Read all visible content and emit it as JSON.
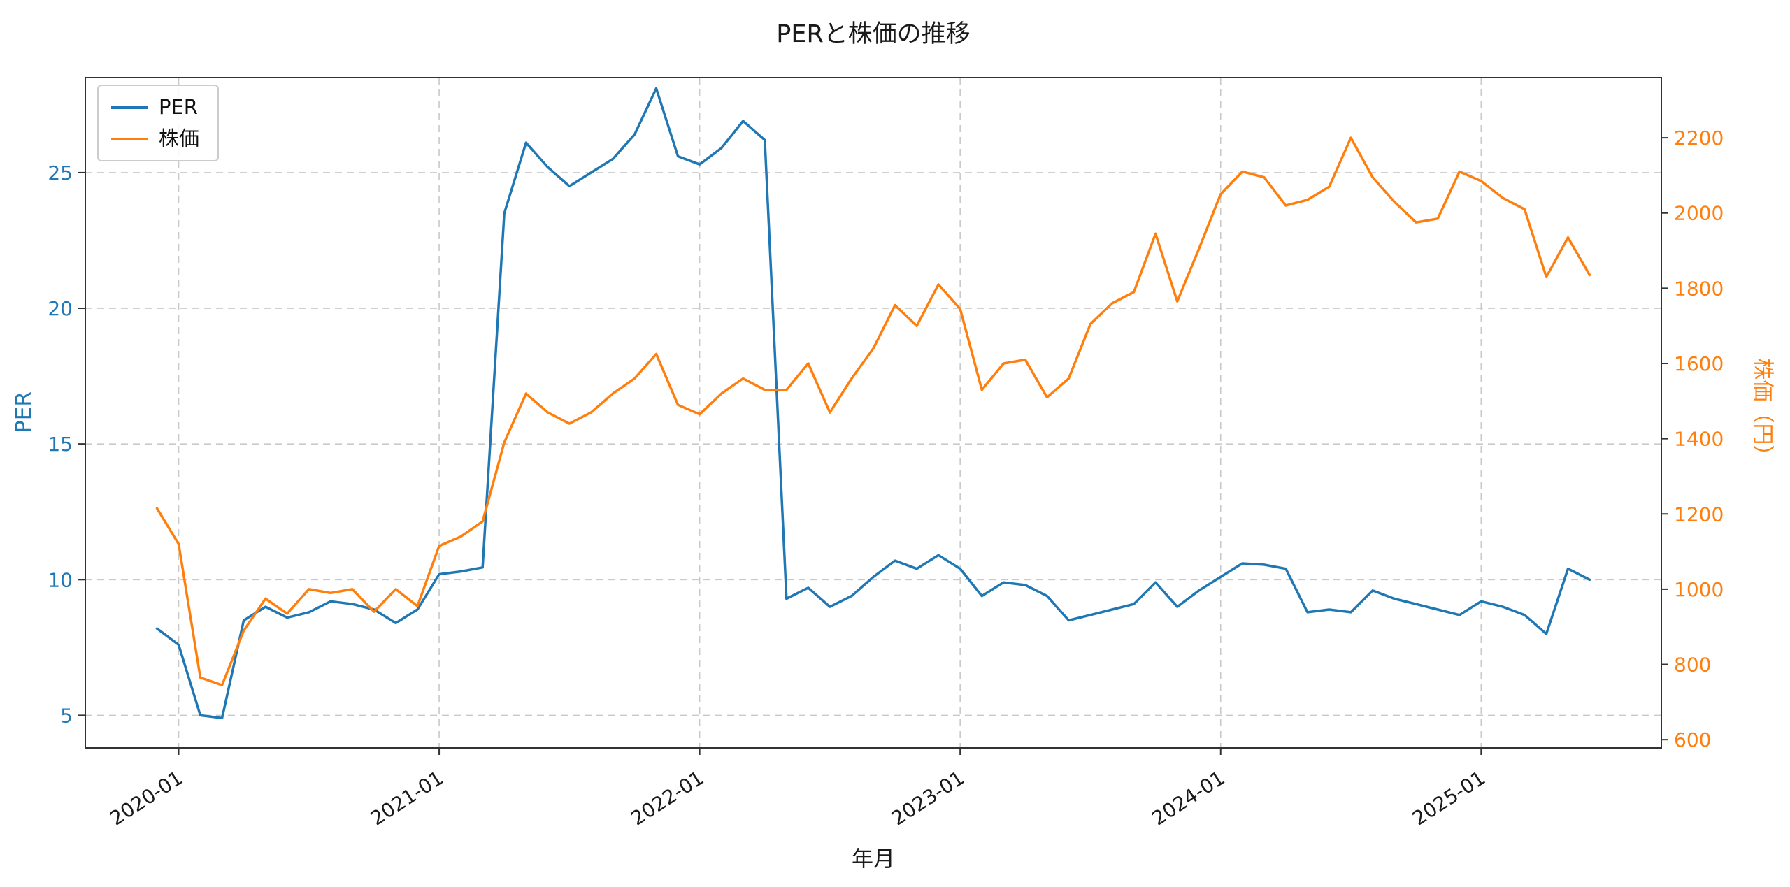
{
  "figure": {
    "title": "PERと株価の推移",
    "xlabel": "年月",
    "ylabel_left": "PER",
    "ylabel_right": "株価（円）",
    "legend": {
      "per": "PER",
      "price": "株価"
    },
    "colors": {
      "per": "#1f77b4",
      "price": "#ff7f0e",
      "grid": "#c9c9c9",
      "spine": "#333333",
      "text": "#1a1a1a"
    }
  },
  "chart_data": {
    "type": "line",
    "title": "PERと株価の推移",
    "xlabel": "年月",
    "grid": true,
    "legend_position": "upper-left",
    "xlim": [
      -3.3,
      69.3
    ],
    "x": [
      "2019-12",
      "2020-01",
      "2020-02",
      "2020-03",
      "2020-04",
      "2020-05",
      "2020-06",
      "2020-07",
      "2020-08",
      "2020-09",
      "2020-10",
      "2020-11",
      "2020-12",
      "2021-01",
      "2021-02",
      "2021-03",
      "2021-04",
      "2021-05",
      "2021-06",
      "2021-07",
      "2021-08",
      "2021-09",
      "2021-10",
      "2021-11",
      "2021-12",
      "2022-01",
      "2022-02",
      "2022-03",
      "2022-04",
      "2022-05",
      "2022-06",
      "2022-07",
      "2022-08",
      "2022-09",
      "2022-10",
      "2022-11",
      "2022-12",
      "2023-01",
      "2023-02",
      "2023-03",
      "2023-04",
      "2023-05",
      "2023-06",
      "2023-07",
      "2023-08",
      "2023-09",
      "2023-10",
      "2023-11",
      "2023-12",
      "2024-01",
      "2024-02",
      "2024-03",
      "2024-04",
      "2024-05",
      "2024-06",
      "2024-07",
      "2024-08",
      "2024-09",
      "2024-10",
      "2024-11",
      "2024-12",
      "2025-01",
      "2025-02",
      "2025-03",
      "2025-04",
      "2025-05",
      "2025-06"
    ],
    "series": [
      {
        "name": "PER",
        "data_name": "per-line",
        "axis": "left",
        "color": "#1f77b4",
        "values": [
          8.2,
          7.6,
          5.0,
          4.9,
          8.5,
          9.0,
          8.6,
          8.8,
          9.2,
          9.1,
          8.9,
          8.4,
          8.9,
          10.2,
          10.3,
          10.45,
          23.5,
          26.1,
          25.2,
          24.5,
          25.0,
          25.5,
          26.4,
          28.1,
          25.6,
          25.3,
          25.9,
          26.9,
          26.2,
          9.3,
          9.7,
          9.0,
          9.4,
          10.1,
          10.7,
          10.4,
          10.9,
          10.4,
          9.4,
          9.9,
          9.8,
          9.4,
          8.5,
          8.7,
          8.9,
          9.1,
          9.9,
          9.0,
          9.6,
          10.1,
          10.6,
          10.55,
          10.4,
          8.8,
          8.9,
          8.8,
          9.6,
          9.3,
          9.1,
          8.9,
          8.7,
          9.2,
          9.0,
          8.7,
          8.0,
          10.4,
          10.0
        ]
      },
      {
        "name": "株価",
        "data_name": "price-line",
        "axis": "right",
        "color": "#ff7f0e",
        "values": [
          1215,
          1120,
          765,
          745,
          890,
          975,
          935,
          1000,
          990,
          1000,
          940,
          1000,
          955,
          1115,
          1140,
          1180,
          1390,
          1520,
          1470,
          1440,
          1470,
          1520,
          1560,
          1625,
          1490,
          1465,
          1520,
          1560,
          1530,
          1530,
          1600,
          1470,
          1560,
          1640,
          1755,
          1700,
          1810,
          1745,
          1530,
          1600,
          1610,
          1510,
          1560,
          1705,
          1760,
          1790,
          1945,
          1765,
          1905,
          2050,
          2110,
          2095,
          2020,
          2035,
          2070,
          2200,
          2095,
          2030,
          1975,
          1985,
          2110,
          2085,
          2040,
          2010,
          1830,
          1935,
          1835
        ]
      }
    ],
    "x_ticks": [
      {
        "label": "2020-01",
        "index": 1
      },
      {
        "label": "2021-01",
        "index": 13
      },
      {
        "label": "2022-01",
        "index": 25
      },
      {
        "label": "2023-01",
        "index": 37
      },
      {
        "label": "2024-01",
        "index": 49
      },
      {
        "label": "2025-01",
        "index": 61
      }
    ],
    "y_left": {
      "label": "PER",
      "ticks": [
        5,
        10,
        15,
        20,
        25
      ],
      "lim": [
        3.8,
        28.5
      ]
    },
    "y_right": {
      "label": "株価（円）",
      "ticks": [
        600,
        800,
        1000,
        1200,
        1400,
        1600,
        1800,
        2000,
        2200
      ],
      "lim": [
        578,
        2360
      ]
    }
  }
}
